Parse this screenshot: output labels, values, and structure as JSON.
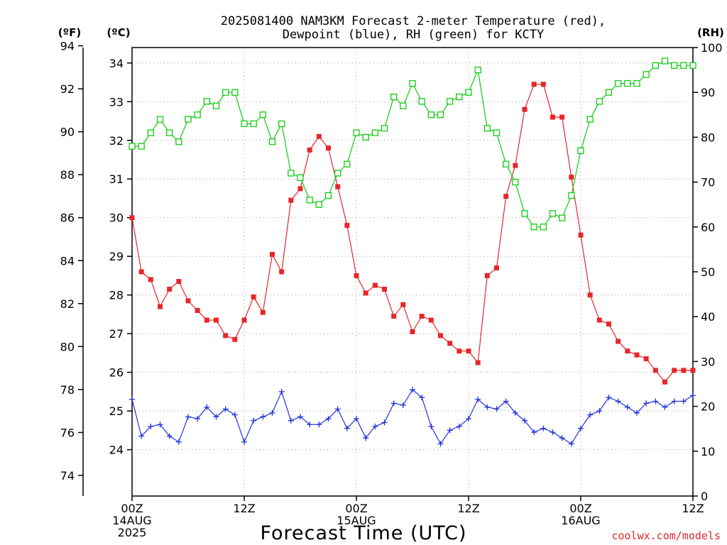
{
  "colors": {
    "temperature": "#e8262a",
    "dewpoint": "#2233dd",
    "rh": "#11cc11",
    "grid": "#999999",
    "credit": "#e0282a"
  },
  "units": {
    "fahrenheit": "(ºF)",
    "celsius": "(ºC)",
    "rh": "(RH)"
  },
  "credit": "coolwx.com/models",
  "chart_data": {
    "type": "line",
    "title": "2025081400 NAM3KM Forecast 2-meter Temperature (red), Dewpoint (blue), RH (green) for KCTY",
    "title_lines": [
      "2025081400 NAM3KM Forecast 2-meter Temperature (red),",
      "Dewpoint (blue), RH (green) for KCTY"
    ],
    "xlabel": "Forecast Time (UTC)",
    "xlim_hours": [
      0,
      60
    ],
    "x_ticks": [
      {
        "hour": 0,
        "lines": [
          "00Z",
          "14AUG",
          "2025"
        ]
      },
      {
        "hour": 12,
        "lines": [
          "12Z"
        ]
      },
      {
        "hour": 24,
        "lines": [
          "00Z",
          "15AUG"
        ]
      },
      {
        "hour": 36,
        "lines": [
          "12Z"
        ]
      },
      {
        "hour": 48,
        "lines": [
          "00Z",
          "16AUG"
        ]
      },
      {
        "hour": 60,
        "lines": [
          "12Z"
        ]
      }
    ],
    "y_left_celsius": {
      "label": "(ºC)",
      "ylim": [
        22.8,
        34.4
      ],
      "ticks": [
        24,
        25,
        26,
        27,
        28,
        29,
        30,
        31,
        32,
        33,
        34
      ]
    },
    "y_left_fahrenheit": {
      "label": "(ºF)",
      "ylim": [
        73.04,
        93.92
      ],
      "ticks": [
        74,
        76,
        78,
        80,
        82,
        84,
        86,
        88,
        90,
        92,
        94
      ]
    },
    "y_right_rh": {
      "label": "(RH)",
      "ylim": [
        0,
        100
      ],
      "ticks": [
        0,
        10,
        20,
        30,
        40,
        50,
        60,
        70,
        80,
        90,
        100
      ]
    },
    "grid": true,
    "x": [
      0,
      1,
      2,
      3,
      4,
      5,
      6,
      7,
      8,
      9,
      10,
      11,
      12,
      13,
      14,
      15,
      16,
      17,
      18,
      19,
      20,
      21,
      22,
      23,
      24,
      25,
      26,
      27,
      28,
      29,
      30,
      31,
      32,
      33,
      34,
      35,
      36,
      37,
      38,
      39,
      40,
      41,
      42,
      43,
      44,
      45,
      46,
      47,
      48,
      49,
      50,
      51,
      52,
      53,
      54,
      55,
      56,
      57,
      58,
      59,
      60
    ],
    "series": [
      {
        "name": "Temperature",
        "unit": "°C",
        "marker": "filled-square",
        "values": [
          30.0,
          28.6,
          28.4,
          27.7,
          28.15,
          28.35,
          27.85,
          27.6,
          27.35,
          27.35,
          26.95,
          26.85,
          27.35,
          27.95,
          27.55,
          29.05,
          28.6,
          30.45,
          30.75,
          31.75,
          32.1,
          31.8,
          30.8,
          29.8,
          28.5,
          28.05,
          28.25,
          28.15,
          27.45,
          27.75,
          27.05,
          27.45,
          27.35,
          26.95,
          26.75,
          26.55,
          26.55,
          26.25,
          28.5,
          28.7,
          30.55,
          31.35,
          32.8,
          33.45,
          33.45,
          32.6,
          32.6,
          31.05,
          29.55,
          28.0,
          27.35,
          27.25,
          26.8,
          26.55,
          26.45,
          26.35,
          26.05,
          25.75,
          26.05,
          26.05,
          26.05
        ]
      },
      {
        "name": "Dewpoint",
        "unit": "°C",
        "marker": "plus",
        "values": [
          25.3,
          24.35,
          24.6,
          24.65,
          24.35,
          24.2,
          24.85,
          24.8,
          25.1,
          24.85,
          25.05,
          24.9,
          24.2,
          24.75,
          24.85,
          24.95,
          25.5,
          24.75,
          24.85,
          24.65,
          24.65,
          24.8,
          25.05,
          24.55,
          24.8,
          24.3,
          24.6,
          24.7,
          25.2,
          25.15,
          25.55,
          25.35,
          24.6,
          24.15,
          24.5,
          24.6,
          24.8,
          25.3,
          25.1,
          25.05,
          25.25,
          24.95,
          24.75,
          24.45,
          24.55,
          24.45,
          24.3,
          24.15,
          24.55,
          24.9,
          25.0,
          25.35,
          25.25,
          25.1,
          24.95,
          25.2,
          25.25,
          25.1,
          25.25,
          25.25,
          25.4
        ]
      },
      {
        "name": "RH",
        "unit": "%",
        "marker": "open-square",
        "values": [
          78,
          78,
          81,
          84,
          81,
          79,
          84,
          85,
          88,
          87,
          90,
          90,
          83,
          83,
          85,
          79,
          83,
          72,
          71,
          66,
          65,
          67,
          72,
          74,
          81,
          80,
          81,
          82,
          89,
          87,
          92,
          88,
          85,
          85,
          88,
          89,
          90,
          95,
          82,
          81,
          74,
          70,
          63,
          60,
          60,
          63,
          62,
          67,
          77,
          84,
          88,
          90,
          92,
          92,
          92,
          94,
          96,
          97,
          96,
          96,
          96
        ]
      }
    ]
  }
}
